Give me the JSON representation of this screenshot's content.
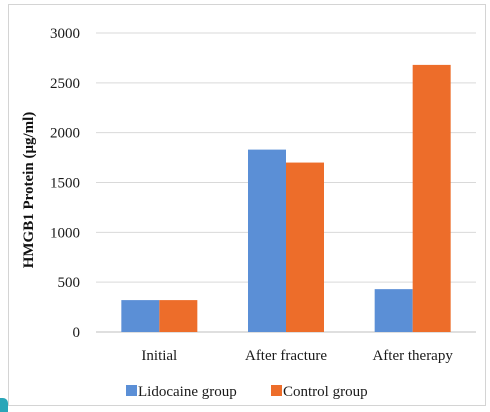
{
  "chart_data": {
    "type": "bar",
    "title": "",
    "xlabel": "",
    "ylabel": "HMGB1 Protein (μg/ml)",
    "categories": [
      "Initial",
      "After fracture",
      "After therapy"
    ],
    "series": [
      {
        "name": "Lidocaine group",
        "values": [
          320,
          1830,
          430
        ],
        "color": "#5b8fd6"
      },
      {
        "name": "Control group",
        "values": [
          320,
          1700,
          2680
        ],
        "color": "#ed6d2a"
      }
    ],
    "ylim": [
      0,
      3000
    ],
    "yticks": [
      0,
      500,
      1000,
      1500,
      2000,
      2500,
      3000
    ],
    "grid": true,
    "legend_position": "bottom"
  }
}
